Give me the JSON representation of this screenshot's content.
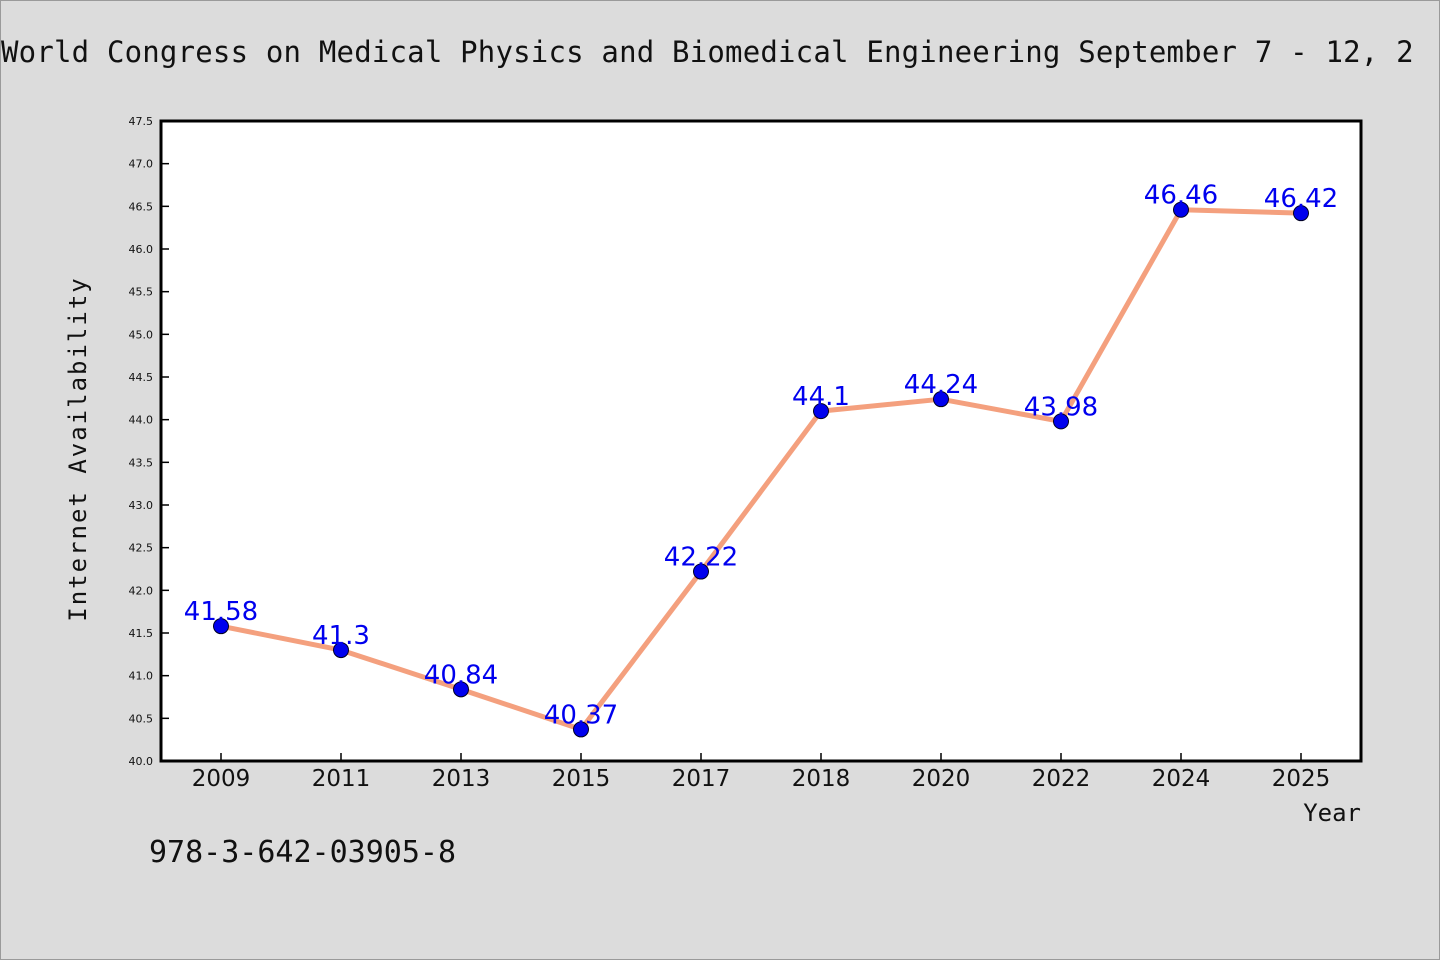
{
  "header": {
    "title": "World Congress on Medical Physics and Biomedical Engineering September 7 - 12, 2"
  },
  "footer": {
    "isbn": "978-3-642-03905-8"
  },
  "chart_data": {
    "type": "line",
    "title": "World Congress on Medical Physics and Biomedical Engineering September 7 - 12, 2",
    "xlabel": "Year",
    "ylabel": "Internet Availability",
    "categories": [
      "2009",
      "2011",
      "2013",
      "2015",
      "2017",
      "2018",
      "2020",
      "2022",
      "2024",
      "2025"
    ],
    "values": [
      41.58,
      41.3,
      40.84,
      40.37,
      42.22,
      44.1,
      44.24,
      43.98,
      46.46,
      46.42
    ],
    "value_labels": [
      "41.58",
      "41.3",
      "40.84",
      "40.37",
      "42.22",
      "44.1",
      "44.24",
      "43.98",
      "46.46",
      "46.42"
    ],
    "ylim": [
      40.0,
      47.5
    ],
    "yticks": [
      "40.0",
      "40.5",
      "41.0",
      "41.5",
      "42.0",
      "42.5",
      "43.0",
      "43.5",
      "44.0",
      "44.5",
      "45.0",
      "45.5",
      "46.0",
      "46.5",
      "47.0",
      "47.5"
    ],
    "grid": false,
    "line_color": "#f4a07e",
    "marker_color": "#0000ee",
    "label_color": "#0000ee"
  }
}
